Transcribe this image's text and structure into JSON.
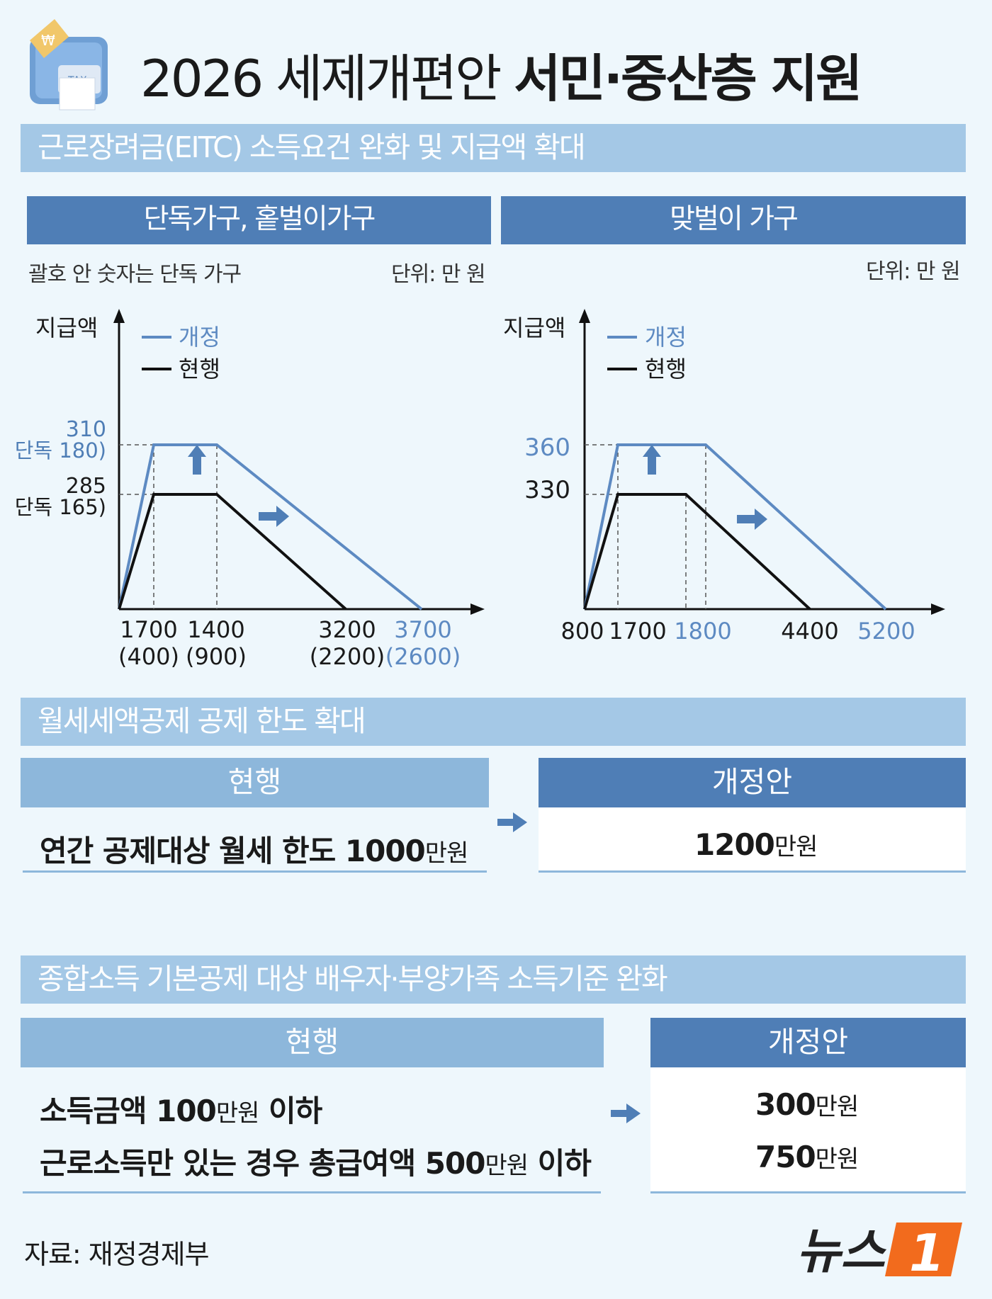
{
  "header": {
    "title_part1": "2026 세제개편안 ",
    "title_part2": "서민·중산층 지원",
    "icon": "tax-receipt-machine-icon"
  },
  "section1": {
    "title": "근로장려금(EITC) 소득요건 완화 및 지급액 확대",
    "left_panel": {
      "heading": "단독가구, 홑벌이가구",
      "note": "괄호 안 숫자는 단독 가구",
      "unit": "단위: 만 원"
    },
    "right_panel": {
      "heading": "맞벌이 가구",
      "unit": "단위: 만 원"
    }
  },
  "chart_data": [
    {
      "type": "line",
      "ylabel": "지급액",
      "legend": [
        "개정",
        "현행"
      ],
      "legend_position": "top-left",
      "y_ticks": [
        {
          "value": 310,
          "label": "310",
          "sub": "(단독 180)"
        },
        {
          "value": 285,
          "label": "285",
          "sub": "(단독 165)"
        }
      ],
      "x_ticks": [
        {
          "label": "1700",
          "sub": "(400)"
        },
        {
          "label": "1400",
          "sub": "(900)"
        },
        {
          "label": "3200",
          "sub": "(2200)"
        },
        {
          "label": "3700",
          "sub": "(2600)"
        }
      ],
      "series": [
        {
          "name": "개정",
          "color": "#5d8ac2",
          "x_labels": [
            "0",
            "1700",
            "1400",
            "3700"
          ],
          "values": [
            0,
            310,
            310,
            0
          ]
        },
        {
          "name": "현행",
          "color": "#111111",
          "x_labels": [
            "0",
            "1700",
            "1400",
            "3200"
          ],
          "values": [
            0,
            285,
            285,
            0
          ]
        }
      ]
    },
    {
      "type": "line",
      "ylabel": "지급액",
      "legend": [
        "개정",
        "현행"
      ],
      "legend_position": "top-left",
      "y_ticks": [
        {
          "value": 360,
          "label": "360"
        },
        {
          "value": 330,
          "label": "330"
        }
      ],
      "x_ticks": [
        {
          "label": "800"
        },
        {
          "label": "1700"
        },
        {
          "label": "1800"
        },
        {
          "label": "4400"
        },
        {
          "label": "5200"
        }
      ],
      "series": [
        {
          "name": "개정",
          "color": "#5d8ac2",
          "x_labels": [
            "0",
            "800",
            "1800",
            "5200"
          ],
          "values": [
            0,
            360,
            360,
            0
          ]
        },
        {
          "name": "현행",
          "color": "#111111",
          "x_labels": [
            "0",
            "800",
            "1700",
            "4400"
          ],
          "values": [
            0,
            330,
            330,
            0
          ]
        }
      ]
    }
  ],
  "section2": {
    "title": "월세세액공제 공제 한도 확대",
    "current_head": "현행",
    "new_head": "개정안",
    "current_text": "연간 공제대상 월세 한도 1000",
    "current_unit": "만원",
    "new_value": "1200",
    "new_unit": "만원"
  },
  "section3": {
    "title": "종합소득 기본공제 대상 배우자·부양가족 소득기준 완화",
    "current_head": "현행",
    "new_head": "개정안",
    "row1_current_a": "소득금액 100",
    "row1_current_unit": "만원",
    "row1_current_b": " 이하",
    "row2_current_a": "근로소득만 있는 경우 총급여액 500",
    "row2_current_unit": "만원",
    "row2_current_b": " 이하",
    "row1_new_value": "300",
    "row1_new_unit": "만원",
    "row2_new_value": "750",
    "row2_new_unit": "만원"
  },
  "footer": {
    "source": "자료: 재정경제부",
    "logo_text": "뉴스",
    "logo_number": "1"
  },
  "colors": {
    "accent_blue": "#4f7eb6",
    "light_blue": "#a4c8e6",
    "revised_line": "#5d8ac2",
    "current_line": "#111111",
    "logo_orange": "#f26b1d"
  }
}
